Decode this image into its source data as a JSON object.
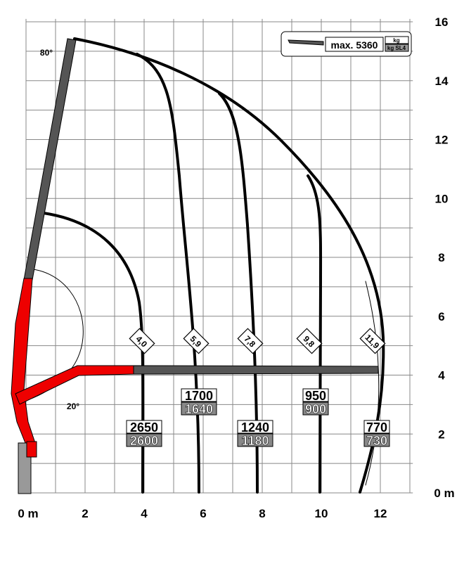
{
  "axes": {
    "x_labels": [
      "0 m",
      "2",
      "4",
      "6",
      "8",
      "10",
      "12"
    ],
    "y_labels": [
      "0 m",
      "2",
      "4",
      "6",
      "8",
      "10",
      "12",
      "14",
      "16"
    ]
  },
  "angles": [
    "80°",
    "20°"
  ],
  "reach_labels": [
    "4,0",
    "5,9",
    "7,8",
    "9,8",
    "11,9"
  ],
  "loads": [
    {
      "top": "2650",
      "bottom": "2600"
    },
    {
      "top": "1700",
      "bottom": "1640"
    },
    {
      "top": "1240",
      "bottom": "1180"
    },
    {
      "top": "950",
      "bottom": "900"
    },
    {
      "top": "770",
      "bottom": "730"
    }
  ],
  "legend": {
    "text": "max. 5360",
    "unit": "kg",
    "unit_sl": "kg SL4"
  }
}
